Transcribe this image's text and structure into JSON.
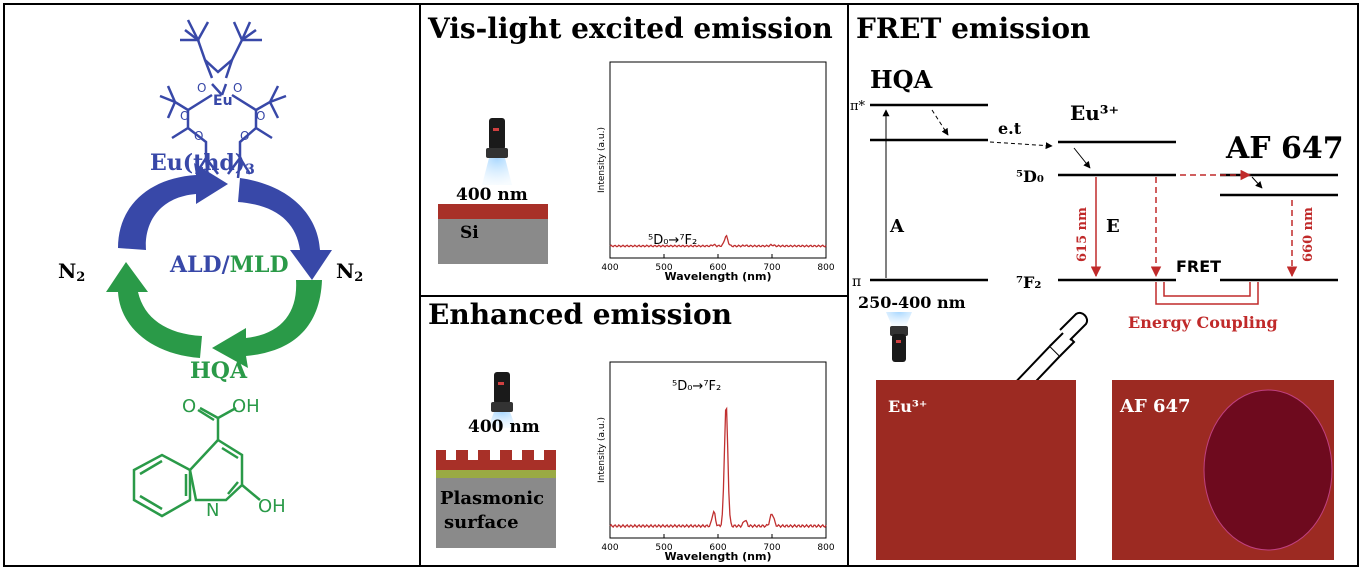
{
  "left": {
    "precursor_label": "Eu(thd)",
    "precursor_sub": "3",
    "eu_atom": "Eu",
    "o_atom": "O",
    "cycle_label_ald": "ALD",
    "cycle_sep": "/",
    "cycle_label_mld": "MLD",
    "purge_left": "N",
    "purge_left_sub": "2",
    "purge_right": "N",
    "purge_right_sub": "2",
    "linker_label": "HQA",
    "hqa_o": "O",
    "hqa_oh_top": "OH",
    "hqa_n": "N",
    "hqa_oh_bottom": "OH"
  },
  "vis_panel": {
    "title": "Vis-light excited emission",
    "excitation": "400 nm",
    "substrate": "Si",
    "transition": "⁵D₀→⁷F₂"
  },
  "enhanced_panel": {
    "title": "Enhanced emission",
    "excitation": "400 nm",
    "substrate_line1": "Plasmonic",
    "substrate_line2": "surface",
    "transition": "⁵D₀→⁷F₂"
  },
  "fret_panel": {
    "title": "FRET emission",
    "hqa": "HQA",
    "pi_star": "π*",
    "pi": "π",
    "absorption": "A",
    "et": "e.t",
    "eu": "Eu³⁺",
    "d0": "⁵D₀",
    "f2": "⁷F₂",
    "emission": "E",
    "wl_615": "615 nm",
    "fret": "FRET",
    "af647": "AF 647",
    "wl_660": "660 nm",
    "coupling": "Energy Coupling",
    "excitation_range": "250-400 nm",
    "sample_eu": "Eu³⁺",
    "sample_af": "AF 647"
  },
  "spectra": {
    "vis": {
      "ylabel": "Intensity (a.u.)",
      "xlabel": "Wavelength (nm)",
      "xticks": [
        "400",
        "500",
        "600",
        "700",
        "800"
      ],
      "line_color": "#c03030"
    },
    "enhanced": {
      "ylabel": "Intensity (a.u.)",
      "xlabel": "Wavelength (nm)",
      "xticks": [
        "400",
        "500",
        "600",
        "700",
        "800"
      ],
      "line_color": "#c03030"
    }
  },
  "colors": {
    "eu_blue": "#3848a8",
    "hqa_green": "#2a9a48",
    "eu_red": "#c02a2a",
    "sample_red": "#9c2a22",
    "af_spot": "#6e0a1e"
  }
}
